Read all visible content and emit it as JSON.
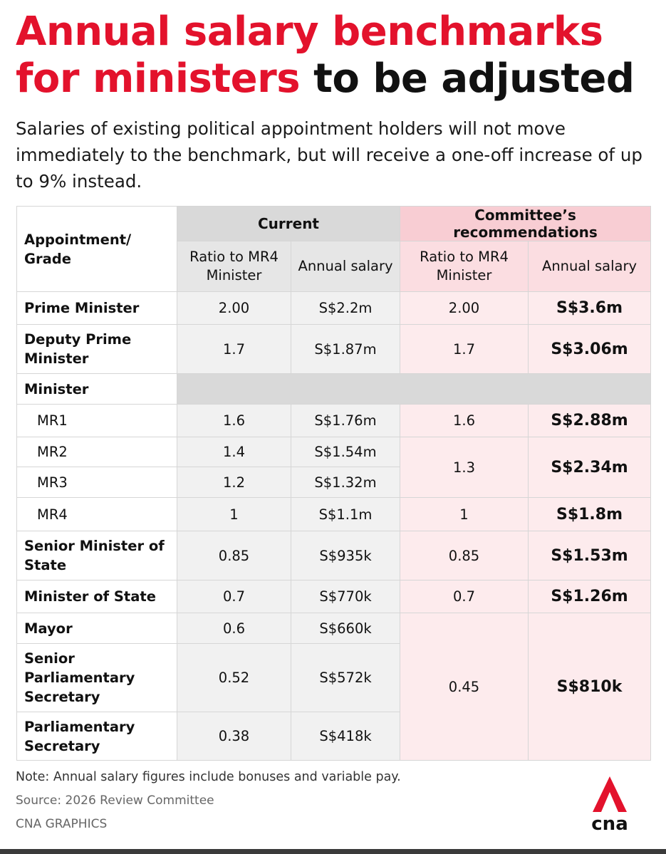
{
  "header": {
    "title_red": "Annual salary benchmarks for ministers",
    "title_black": "to be adjusted",
    "subtitle": "Salaries of existing political appointment holders will not move immediately to the benchmark, but will receive a one-off increase of up to 9% instead."
  },
  "table": {
    "col_appointment": "Appointment/ Grade",
    "group_current": "Current",
    "group_recommend": "Committee’s recommendations",
    "sub_ratio": "Ratio to MR4 Minister",
    "sub_salary": "Annual salary",
    "rows": {
      "pm": {
        "label": "Prime Minister",
        "cur_ratio": "2.00",
        "cur_salary": "S$2.2m",
        "rec_ratio": "2.00",
        "rec_salary": "S$3.6m"
      },
      "dpm": {
        "label": "Deputy Prime Minister",
        "cur_ratio": "1.7",
        "cur_salary": "S$1.87m",
        "rec_ratio": "1.7",
        "rec_salary": "S$3.06m"
      },
      "minister": {
        "label": "Minister"
      },
      "mr1": {
        "label": "MR1",
        "cur_ratio": "1.6",
        "cur_salary": "S$1.76m",
        "rec_ratio": "1.6",
        "rec_salary": "S$2.88m"
      },
      "mr2": {
        "label": "MR2",
        "cur_ratio": "1.4",
        "cur_salary": "S$1.54m"
      },
      "mr3": {
        "label": "MR3",
        "cur_ratio": "1.2",
        "cur_salary": "S$1.32m"
      },
      "mr23_rec": {
        "rec_ratio": "1.3",
        "rec_salary": "S$2.34m"
      },
      "mr4": {
        "label": "MR4",
        "cur_ratio": "1",
        "cur_salary": "S$1.1m",
        "rec_ratio": "1",
        "rec_salary": "S$1.8m"
      },
      "smos": {
        "label": "Senior Minister of State",
        "cur_ratio": "0.85",
        "cur_salary": "S$935k",
        "rec_ratio": "0.85",
        "rec_salary": "S$1.53m"
      },
      "mos": {
        "label": "Minister of State",
        "cur_ratio": "0.7",
        "cur_salary": "S$770k",
        "rec_ratio": "0.7",
        "rec_salary": "S$1.26m"
      },
      "mayor": {
        "label": "Mayor",
        "cur_ratio": "0.6",
        "cur_salary": "S$660k"
      },
      "sps": {
        "label": "Senior Parliamentary Secretary",
        "cur_ratio": "0.52",
        "cur_salary": "S$572k"
      },
      "ps": {
        "label": "Parliamentary Secretary",
        "cur_ratio": "0.38",
        "cur_salary": "S$418k"
      },
      "lower_rec": {
        "rec_ratio": "0.45",
        "rec_salary": "S$810k"
      }
    }
  },
  "footer": {
    "note": "Note: Annual salary figures include bonuses and variable pay.",
    "source": "Source: 2026 Review Committee",
    "credit": "CNA GRAPHICS",
    "logo_text": "cna"
  },
  "colors": {
    "accent_red": "#e3122c",
    "current_header": "#d9d9d9",
    "recommend_header": "#f8cdd3",
    "recommend_cell": "#fdebed"
  },
  "icons": {
    "logo": "cna-logo-icon"
  }
}
